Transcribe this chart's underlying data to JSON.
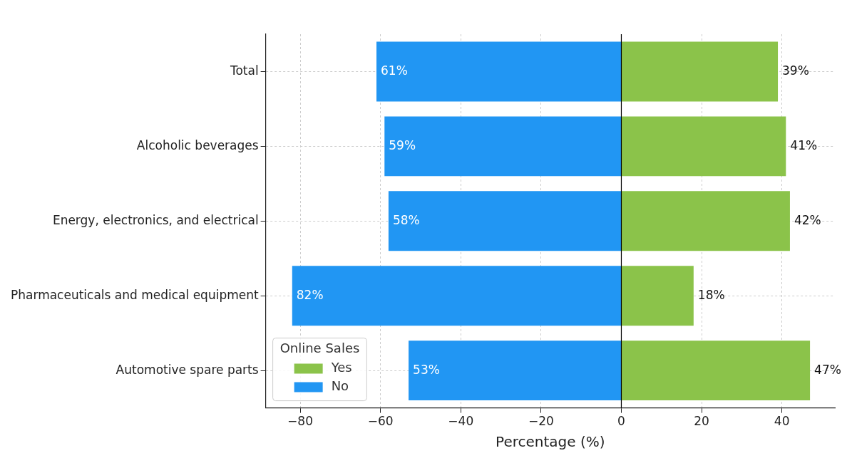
{
  "chart_data": {
    "type": "bar",
    "orientation": "horizontal",
    "categories": [
      "Total",
      "Alcoholic beverages",
      "Energy, electronics, and electrical",
      "Pharmaceuticals and medical equipment",
      "Automotive spare parts"
    ],
    "series": [
      {
        "name": "Yes",
        "color": "#8bc34a",
        "base": [
          0,
          0,
          0,
          0,
          0
        ],
        "values": [
          39,
          41,
          42,
          18,
          47
        ],
        "value_labels": [
          "39%",
          "41%",
          "42%",
          "18%",
          "47%"
        ]
      },
      {
        "name": "No",
        "color": "#2196f3",
        "base": [
          -61,
          -59,
          -58,
          -82,
          -53
        ],
        "values": [
          61,
          59,
          58,
          82,
          53
        ],
        "value_labels": [
          "61%",
          "59%",
          "58%",
          "82%",
          "53%"
        ]
      }
    ],
    "xlabel": "Percentage (%)",
    "xlim": [
      -88.6,
      53.2
    ],
    "xticks": [
      {
        "value": -80,
        "label": "−80"
      },
      {
        "value": -60,
        "label": "−60"
      },
      {
        "value": -40,
        "label": "−40"
      },
      {
        "value": -20,
        "label": "−20"
      },
      0,
      20,
      40
    ],
    "grid": true,
    "legend": "bottom left",
    "legend_title": "Online Sales",
    "ref_lines": [
      {
        "axis": "x",
        "value": 0,
        "color": "#000000"
      }
    ]
  }
}
